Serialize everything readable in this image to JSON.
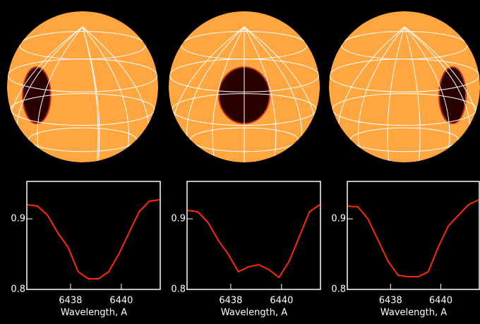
{
  "chart_data": [
    {
      "type": "line",
      "xlabel": "Wavelength, A",
      "x": [
        6436.3,
        6436.7,
        6437.1,
        6437.5,
        6437.9,
        6438.3,
        6438.7,
        6439.1,
        6439.5,
        6439.9,
        6440.3,
        6440.7,
        6441.1,
        6441.5
      ],
      "series": [
        {
          "color": "#ff2a00",
          "values": [
            0.92,
            0.918,
            0.905,
            0.88,
            0.86,
            0.825,
            0.815,
            0.815,
            0.825,
            0.85,
            0.88,
            0.91,
            0.925,
            0.927
          ]
        }
      ],
      "xlim": [
        6436.28,
        6441.56
      ],
      "ylim": [
        0.8,
        0.953
      ],
      "xticks": [
        6438,
        6440
      ],
      "yticks": [
        0.8,
        0.9
      ]
    },
    {
      "type": "line",
      "xlabel": "Wavelength, A",
      "x": [
        6436.3,
        6436.7,
        6437.1,
        6437.5,
        6437.9,
        6438.3,
        6438.7,
        6439.1,
        6439.5,
        6439.9,
        6440.3,
        6440.7,
        6441.1,
        6441.5
      ],
      "series": [
        {
          "color": "#ff2a00",
          "values": [
            0.912,
            0.91,
            0.895,
            0.87,
            0.85,
            0.825,
            0.832,
            0.835,
            0.828,
            0.817,
            0.84,
            0.875,
            0.91,
            0.92
          ]
        }
      ],
      "xlim": [
        6436.28,
        6441.56
      ],
      "ylim": [
        0.8,
        0.953
      ],
      "xticks": [
        6438,
        6440
      ],
      "yticks": [
        0.8,
        0.9
      ]
    },
    {
      "type": "line",
      "xlabel": "Wavelength, A",
      "x": [
        6436.3,
        6436.7,
        6437.1,
        6437.5,
        6437.9,
        6438.3,
        6438.7,
        6439.1,
        6439.5,
        6439.9,
        6440.3,
        6440.7,
        6441.1,
        6441.5
      ],
      "series": [
        {
          "color": "#ff2a00",
          "values": [
            0.918,
            0.917,
            0.9,
            0.87,
            0.84,
            0.82,
            0.818,
            0.818,
            0.825,
            0.86,
            0.89,
            0.905,
            0.92,
            0.927
          ]
        }
      ],
      "xlim": [
        6436.28,
        6441.56
      ],
      "ylim": [
        0.8,
        0.953
      ],
      "xticks": [
        6438,
        6440
      ],
      "yticks": [
        0.8,
        0.9
      ]
    }
  ]
}
